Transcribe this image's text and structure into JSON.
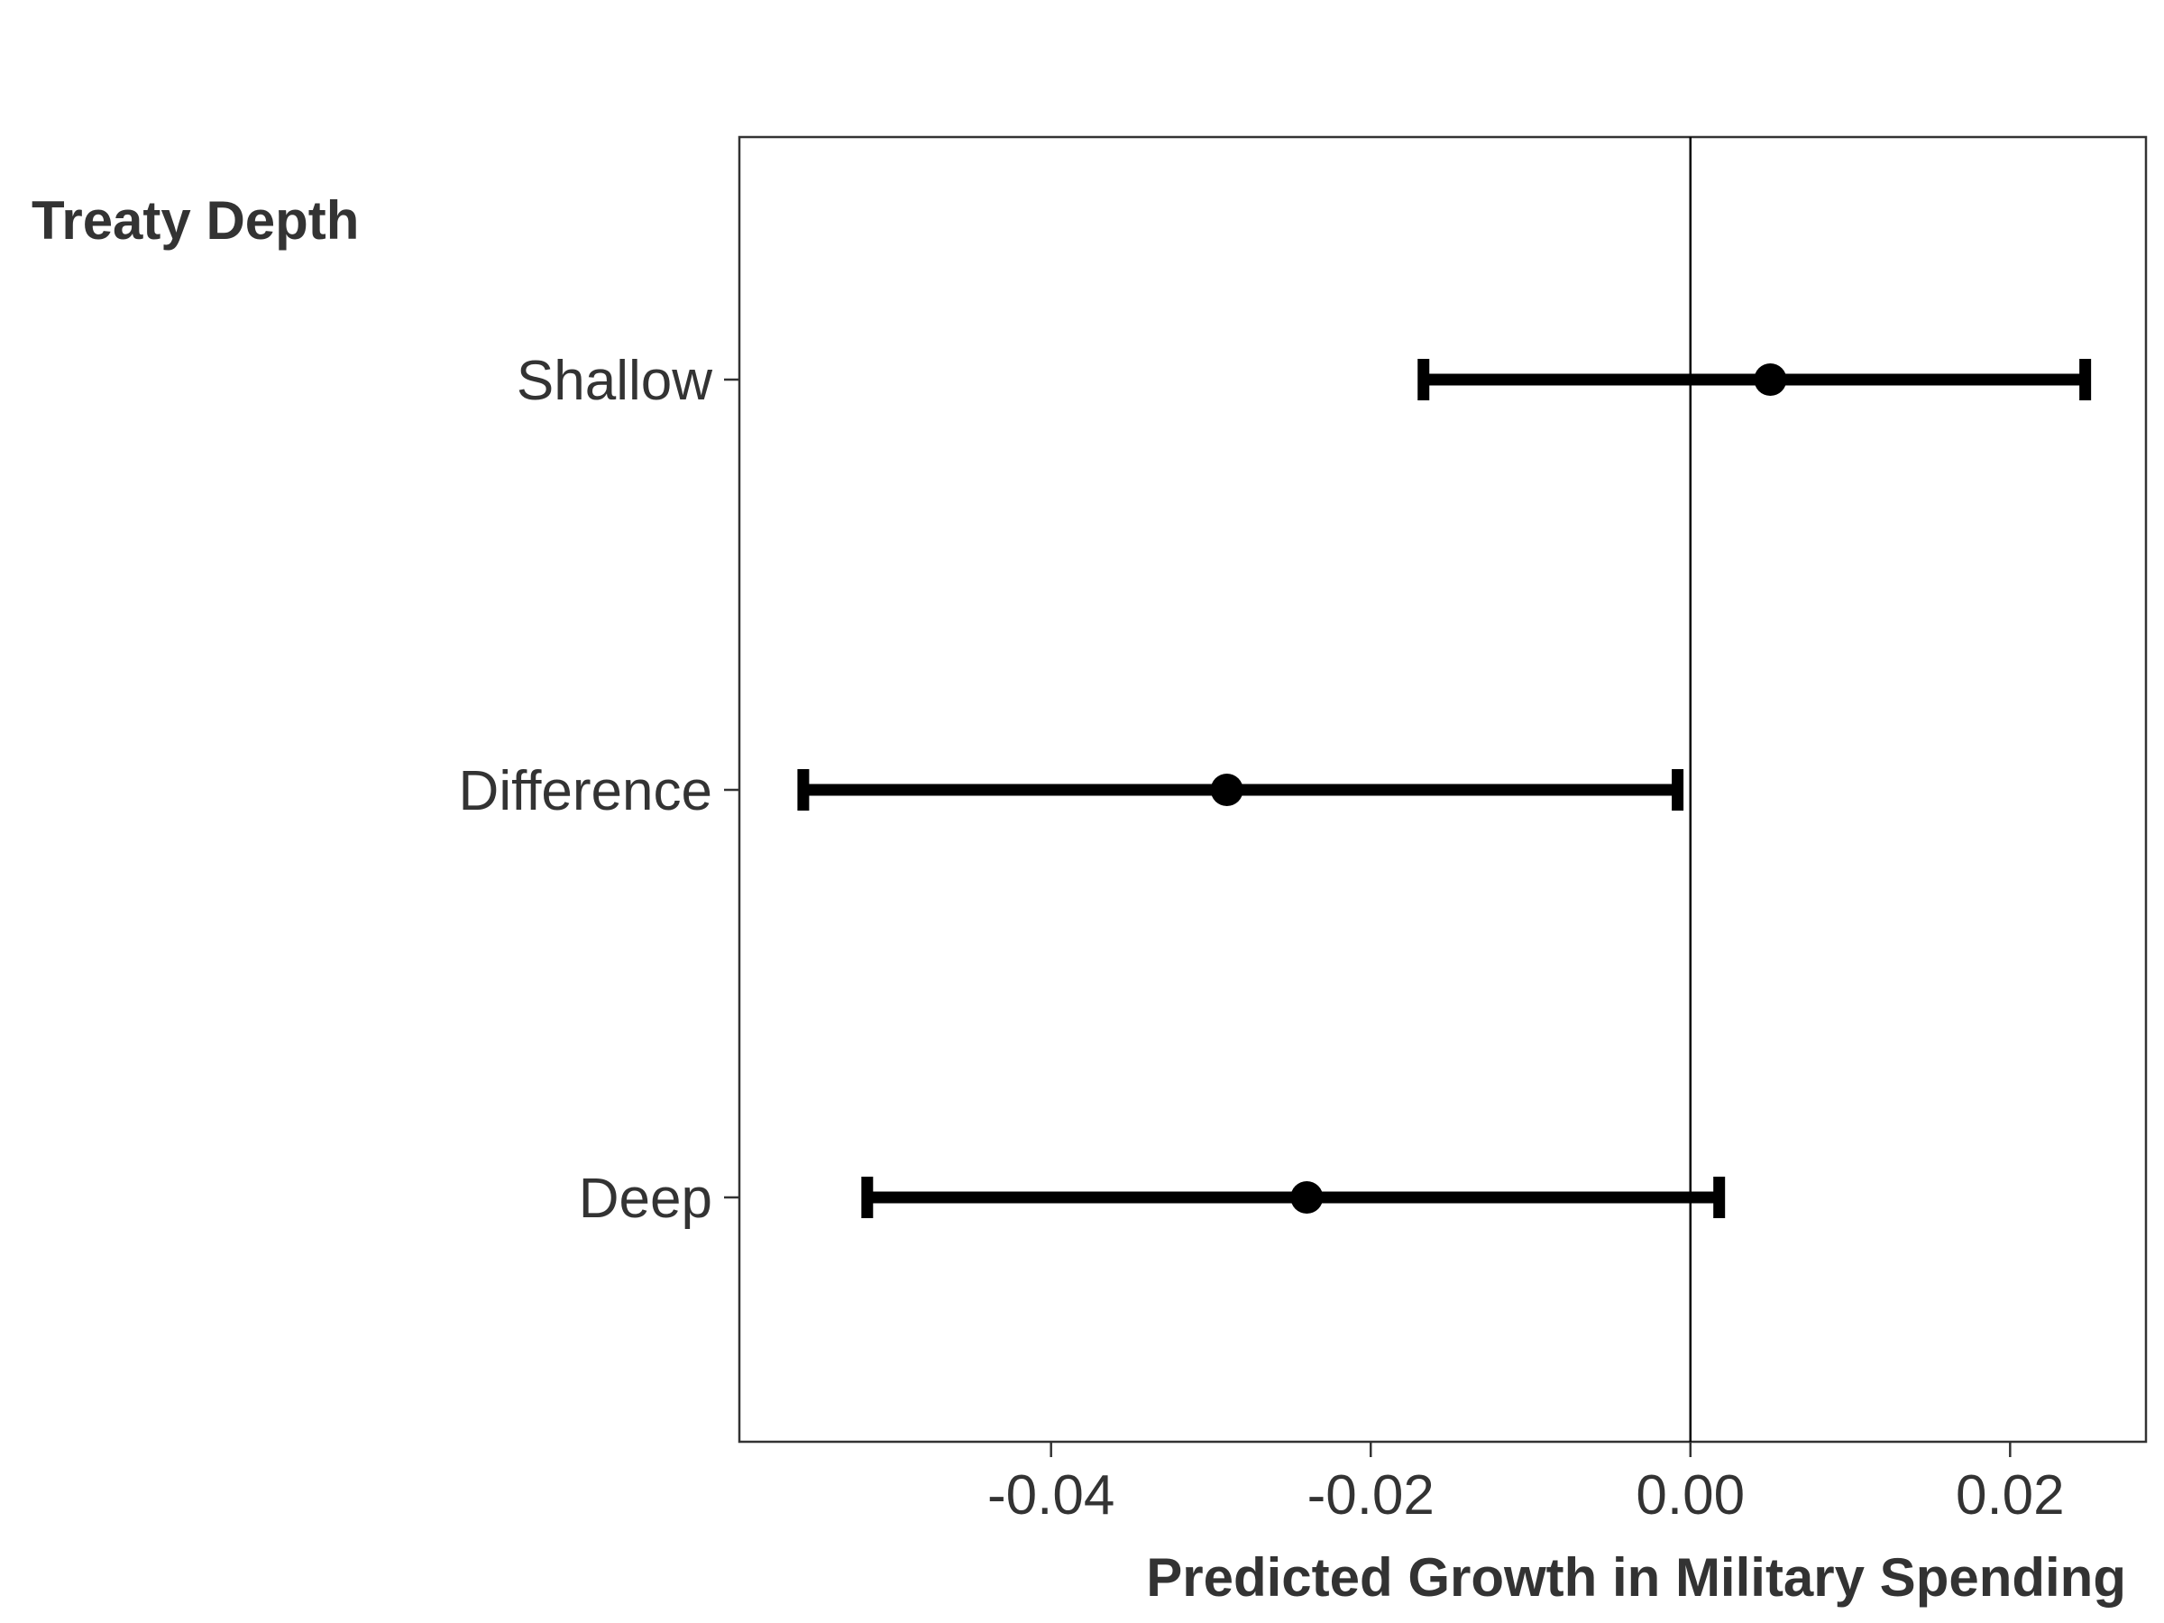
{
  "chart_data": {
    "type": "errorbar",
    "orientation": "horizontal",
    "title": "",
    "ylabel": "Treaty Depth",
    "xlabel": "Predicted Growth in Military Spending",
    "categories": [
      "Shallow",
      "Difference",
      "Deep"
    ],
    "series": [
      {
        "estimate": [
          0.005,
          -0.029,
          -0.024
        ],
        "lower": [
          -0.0167,
          -0.0555,
          -0.0515
        ],
        "upper": [
          0.0247,
          -0.0008,
          0.0018
        ]
      }
    ],
    "xlim": [
      -0.0595,
      0.0285
    ],
    "xticks": [
      -0.04,
      -0.02,
      0.0,
      0.02
    ],
    "xtick_labels": [
      "-0.04",
      "-0.02",
      "0.00",
      "0.02"
    ],
    "reference_line_x": 0.0,
    "grid": false,
    "legend": "none",
    "colors": {
      "marks": "#000000",
      "text": "#333333",
      "frame": "#333333"
    }
  }
}
